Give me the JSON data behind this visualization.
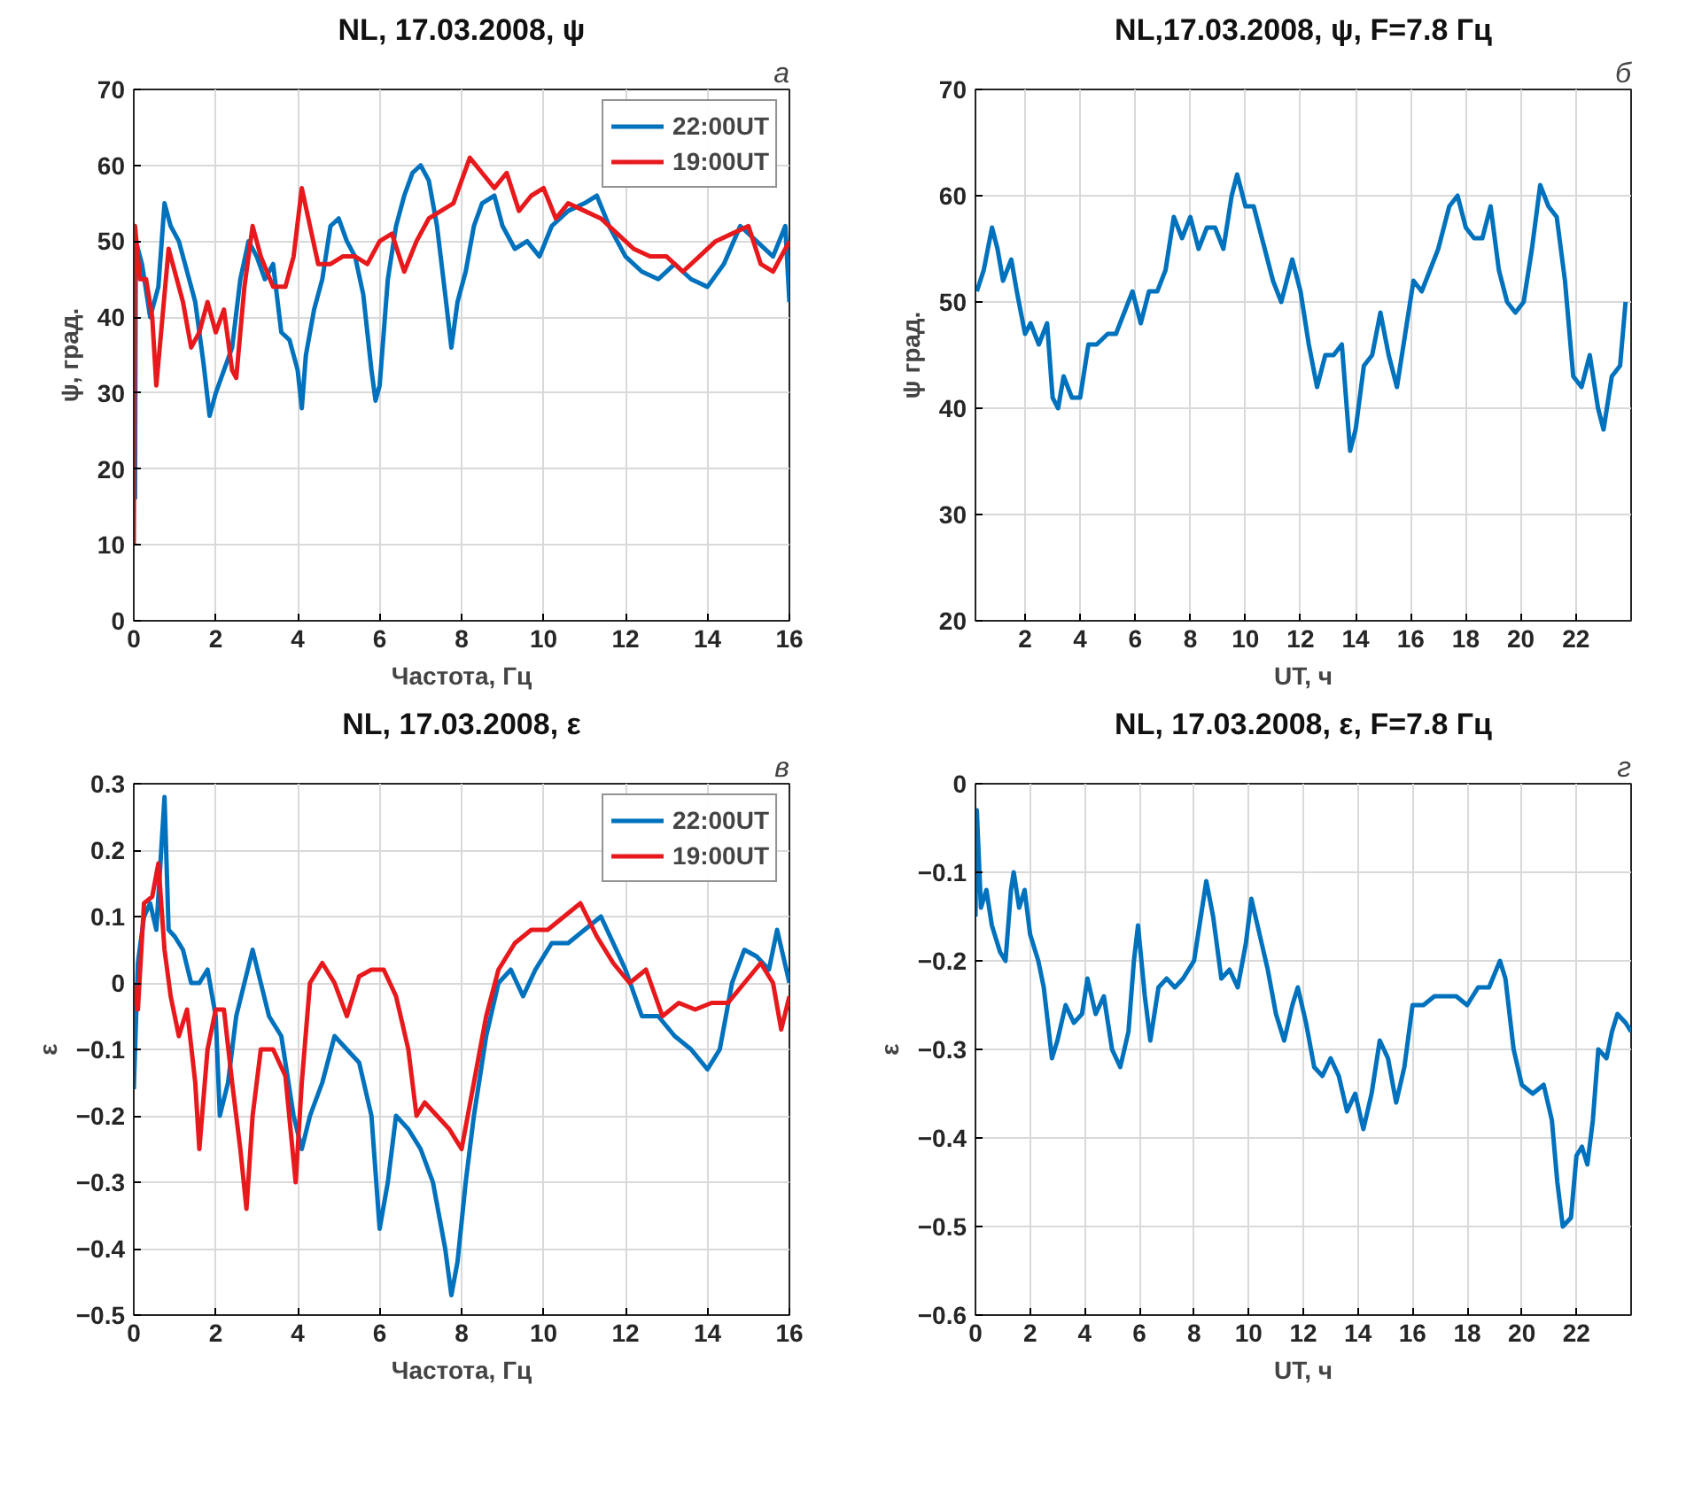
{
  "chart_data": [
    {
      "type": "line",
      "title": "NL, 17.03.2008, ψ",
      "xlabel": "Частота, Гц",
      "ylabel": "ψ, град.",
      "annotations": [
        "а"
      ],
      "xlim": [
        0,
        16
      ],
      "ylim": [
        0,
        70
      ],
      "xticks": [
        0,
        2,
        4,
        6,
        8,
        10,
        12,
        14,
        16
      ],
      "yticks": [
        0,
        10,
        20,
        30,
        40,
        50,
        60,
        70
      ],
      "grid": true,
      "legend": "top right",
      "series": [
        {
          "name": "22:00UT",
          "color": "#0072bd",
          "x": [
            0.03,
            0.05,
            0.2,
            0.4,
            0.6,
            0.75,
            0.9,
            1.1,
            1.3,
            1.5,
            1.7,
            1.85,
            2.0,
            2.2,
            2.4,
            2.6,
            2.8,
            3.0,
            3.2,
            3.4,
            3.6,
            3.8,
            4.0,
            4.1,
            4.2,
            4.4,
            4.6,
            4.8,
            5.0,
            5.2,
            5.4,
            5.6,
            5.8,
            5.9,
            6.0,
            6.2,
            6.4,
            6.6,
            6.8,
            7.0,
            7.2,
            7.4,
            7.6,
            7.75,
            7.9,
            8.1,
            8.3,
            8.5,
            8.8,
            9.0,
            9.3,
            9.6,
            9.9,
            10.2,
            10.6,
            11.0,
            11.3,
            11.6,
            12.0,
            12.4,
            12.8,
            13.2,
            13.6,
            14.0,
            14.4,
            14.8,
            15.2,
            15.6,
            15.9,
            16
          ],
          "values": [
            16,
            50,
            47,
            40,
            44,
            55,
            52,
            50,
            46,
            42,
            34,
            27,
            30,
            33,
            36,
            45,
            50,
            48,
            45,
            47,
            38,
            37,
            33,
            28,
            35,
            41,
            45,
            52,
            53,
            50,
            48,
            43,
            33,
            29,
            31,
            45,
            52,
            56,
            59,
            60,
            58,
            52,
            43,
            36,
            42,
            46,
            52,
            55,
            56,
            52,
            49,
            50,
            48,
            52,
            54,
            55,
            56,
            52,
            48,
            46,
            45,
            47,
            45,
            44,
            47,
            52,
            50,
            48,
            52,
            42
          ]
        },
        {
          "name": "19:00UT",
          "color": "#e8191c",
          "x": [
            0,
            0.03,
            0.15,
            0.3,
            0.45,
            0.55,
            0.7,
            0.85,
            1.0,
            1.2,
            1.4,
            1.6,
            1.8,
            2.0,
            2.2,
            2.4,
            2.5,
            2.7,
            2.9,
            3.1,
            3.4,
            3.7,
            3.9,
            4.1,
            4.3,
            4.5,
            4.8,
            5.1,
            5.4,
            5.7,
            6.0,
            6.3,
            6.6,
            6.9,
            7.2,
            7.5,
            7.8,
            8.0,
            8.2,
            8.5,
            8.8,
            9.1,
            9.4,
            9.7,
            10.0,
            10.3,
            10.6,
            11.0,
            11.4,
            11.8,
            12.2,
            12.6,
            13.0,
            13.4,
            13.8,
            14.2,
            14.6,
            15.0,
            15.3,
            15.6,
            16
          ],
          "values": [
            10,
            52,
            45,
            45,
            40,
            31,
            40,
            49,
            46,
            42,
            36,
            38,
            42,
            38,
            41,
            33,
            32,
            44,
            52,
            48,
            44,
            44,
            48,
            57,
            52,
            47,
            47,
            48,
            48,
            47,
            50,
            51,
            46,
            50,
            53,
            54,
            55,
            58,
            61,
            59,
            57,
            59,
            54,
            56,
            57,
            53,
            55,
            54,
            53,
            51,
            49,
            48,
            48,
            46,
            48,
            50,
            51,
            52,
            47,
            46,
            50
          ]
        }
      ]
    },
    {
      "type": "line",
      "title": "NL,17.03.2008, ψ, F=7.8 Гц",
      "xlabel": "UT, ч",
      "ylabel": "ψ град.",
      "annotations": [
        "б"
      ],
      "xlim": [
        0.2,
        24
      ],
      "ylim": [
        20,
        70
      ],
      "xticks": [
        2,
        4,
        6,
        8,
        10,
        12,
        14,
        16,
        18,
        20,
        22
      ],
      "yticks": [
        20,
        30,
        40,
        50,
        60,
        70
      ],
      "grid": true,
      "series": [
        {
          "color": "#0072bd",
          "x": [
            0.25,
            0.5,
            0.8,
            1.0,
            1.2,
            1.5,
            1.7,
            2.0,
            2.2,
            2.5,
            2.8,
            3.0,
            3.2,
            3.4,
            3.7,
            4.0,
            4.3,
            4.6,
            5.0,
            5.3,
            5.6,
            5.9,
            6.2,
            6.5,
            6.8,
            7.1,
            7.4,
            7.7,
            8.0,
            8.3,
            8.6,
            8.9,
            9.2,
            9.5,
            9.7,
            10.0,
            10.3,
            10.7,
            11.0,
            11.3,
            11.7,
            12.0,
            12.3,
            12.6,
            12.9,
            13.2,
            13.5,
            13.8,
            14.0,
            14.3,
            14.6,
            14.9,
            15.2,
            15.5,
            15.8,
            16.1,
            16.4,
            16.7,
            17.0,
            17.4,
            17.7,
            18.0,
            18.3,
            18.6,
            18.9,
            19.2,
            19.5,
            19.8,
            20.1,
            20.4,
            20.7,
            21.0,
            21.3,
            21.6,
            21.9,
            22.2,
            22.5,
            22.8,
            23.0,
            23.3,
            23.6,
            23.8
          ],
          "values": [
            51,
            53,
            57,
            55,
            52,
            54,
            51,
            47,
            48,
            46,
            48,
            41,
            40,
            43,
            41,
            41,
            46,
            46,
            47,
            47,
            49,
            51,
            48,
            51,
            51,
            53,
            58,
            56,
            58,
            55,
            57,
            57,
            55,
            60,
            62,
            59,
            59,
            55,
            52,
            50,
            54,
            51,
            46,
            42,
            45,
            45,
            46,
            36,
            38,
            44,
            45,
            49,
            45,
            42,
            47,
            52,
            51,
            53,
            55,
            59,
            60,
            57,
            56,
            56,
            59,
            53,
            50,
            49,
            50,
            55,
            61,
            59,
            58,
            52,
            43,
            42,
            45,
            40,
            38,
            43,
            44,
            50
          ]
        }
      ]
    },
    {
      "type": "line",
      "title": "NL, 17.03.2008, ε",
      "xlabel": "Частота, Гц",
      "ylabel": "ε",
      "annotations": [
        "в"
      ],
      "xlim": [
        0,
        16
      ],
      "ylim": [
        -0.5,
        0.3
      ],
      "xticks": [
        0,
        2,
        4,
        6,
        8,
        10,
        12,
        14,
        16
      ],
      "yticks": [
        -0.5,
        -0.4,
        -0.3,
        -0.2,
        -0.1,
        0,
        0.1,
        0.2,
        0.3
      ],
      "grid": true,
      "legend": "top right",
      "series": [
        {
          "name": "22:00UT",
          "color": "#0072bd",
          "x": [
            0,
            0.1,
            0.25,
            0.4,
            0.55,
            0.75,
            0.85,
            1.0,
            1.2,
            1.4,
            1.6,
            1.8,
            2.0,
            2.1,
            2.3,
            2.5,
            2.7,
            2.9,
            3.1,
            3.3,
            3.6,
            3.9,
            4.1,
            4.3,
            4.6,
            4.9,
            5.2,
            5.5,
            5.8,
            6.0,
            6.2,
            6.4,
            6.7,
            7.0,
            7.3,
            7.6,
            7.75,
            7.9,
            8.1,
            8.3,
            8.6,
            8.9,
            9.2,
            9.5,
            9.8,
            10.2,
            10.6,
            11.0,
            11.4,
            11.7,
            12.0,
            12.4,
            12.8,
            13.2,
            13.6,
            14.0,
            14.3,
            14.6,
            14.9,
            15.2,
            15.5,
            15.7,
            16
          ],
          "values": [
            -0.16,
            0.03,
            0.1,
            0.12,
            0.08,
            0.28,
            0.08,
            0.07,
            0.05,
            0.0,
            0.0,
            0.02,
            -0.05,
            -0.2,
            -0.15,
            -0.05,
            0.0,
            0.05,
            0.0,
            -0.05,
            -0.08,
            -0.2,
            -0.25,
            -0.2,
            -0.15,
            -0.08,
            -0.1,
            -0.12,
            -0.2,
            -0.37,
            -0.3,
            -0.2,
            -0.22,
            -0.25,
            -0.3,
            -0.4,
            -0.47,
            -0.42,
            -0.3,
            -0.2,
            -0.08,
            0.0,
            0.02,
            -0.02,
            0.02,
            0.06,
            0.06,
            0.08,
            0.1,
            0.06,
            0.02,
            -0.05,
            -0.05,
            -0.08,
            -0.1,
            -0.13,
            -0.1,
            0.0,
            0.05,
            0.04,
            0.02,
            0.08,
            0.0
          ]
        },
        {
          "name": "19:00UT",
          "color": "#e8191c",
          "x": [
            0,
            0.1,
            0.25,
            0.45,
            0.6,
            0.75,
            0.9,
            1.1,
            1.3,
            1.5,
            1.6,
            1.8,
            2.0,
            2.2,
            2.4,
            2.6,
            2.75,
            2.9,
            3.1,
            3.4,
            3.7,
            3.95,
            4.1,
            4.3,
            4.6,
            4.9,
            5.2,
            5.5,
            5.8,
            6.1,
            6.4,
            6.7,
            6.9,
            7.1,
            7.4,
            7.7,
            8.0,
            8.3,
            8.6,
            8.9,
            9.3,
            9.7,
            10.1,
            10.5,
            10.9,
            11.3,
            11.7,
            12.1,
            12.5,
            12.9,
            13.3,
            13.7,
            14.1,
            14.5,
            14.9,
            15.3,
            15.6,
            15.8,
            16
          ],
          "values": [
            0.0,
            -0.04,
            0.12,
            0.13,
            0.18,
            0.05,
            -0.02,
            -0.08,
            -0.04,
            -0.15,
            -0.25,
            -0.1,
            -0.04,
            -0.04,
            -0.15,
            -0.25,
            -0.34,
            -0.2,
            -0.1,
            -0.1,
            -0.14,
            -0.3,
            -0.15,
            0.0,
            0.03,
            0.0,
            -0.05,
            0.01,
            0.02,
            0.02,
            -0.02,
            -0.1,
            -0.2,
            -0.18,
            -0.2,
            -0.22,
            -0.25,
            -0.15,
            -0.05,
            0.02,
            0.06,
            0.08,
            0.08,
            0.1,
            0.12,
            0.07,
            0.03,
            0.0,
            0.02,
            -0.05,
            -0.03,
            -0.04,
            -0.03,
            -0.03,
            0.0,
            0.03,
            0.0,
            -0.07,
            -0.02
          ]
        }
      ]
    },
    {
      "type": "line",
      "title": "NL, 17.03.2008, ε, F=7.8 Гц",
      "xlabel": "UT, ч",
      "ylabel": "ε",
      "annotations": [
        "г"
      ],
      "xlim": [
        0,
        24
      ],
      "ylim": [
        -0.6,
        0
      ],
      "xticks": [
        0,
        2,
        4,
        6,
        8,
        10,
        12,
        14,
        16,
        18,
        20,
        22
      ],
      "yticks": [
        -0.6,
        -0.5,
        -0.4,
        -0.3,
        -0.2,
        -0.1,
        0
      ],
      "grid": true,
      "series": [
        {
          "color": "#0072bd",
          "x": [
            0,
            0.05,
            0.2,
            0.4,
            0.6,
            0.9,
            1.1,
            1.3,
            1.4,
            1.6,
            1.8,
            2.0,
            2.3,
            2.5,
            2.8,
            3.0,
            3.3,
            3.6,
            3.9,
            4.1,
            4.4,
            4.7,
            5.0,
            5.3,
            5.6,
            5.8,
            5.95,
            6.2,
            6.4,
            6.7,
            7.0,
            7.3,
            7.6,
            8.0,
            8.3,
            8.45,
            8.7,
            9.0,
            9.3,
            9.6,
            9.9,
            10.1,
            10.4,
            10.7,
            11.0,
            11.3,
            11.6,
            11.8,
            12.1,
            12.4,
            12.7,
            13.0,
            13.3,
            13.6,
            13.9,
            14.2,
            14.5,
            14.8,
            15.1,
            15.4,
            15.7,
            16.0,
            16.4,
            16.8,
            17.2,
            17.6,
            18.0,
            18.4,
            18.8,
            19.2,
            19.4,
            19.7,
            20.0,
            20.4,
            20.8,
            21.1,
            21.3,
            21.5,
            21.8,
            22.0,
            22.2,
            22.4,
            22.6,
            22.8,
            23.1,
            23.3,
            23.5,
            23.8,
            24
          ],
          "values": [
            -0.15,
            -0.03,
            -0.14,
            -0.12,
            -0.16,
            -0.19,
            -0.2,
            -0.12,
            -0.1,
            -0.14,
            -0.12,
            -0.17,
            -0.2,
            -0.23,
            -0.31,
            -0.29,
            -0.25,
            -0.27,
            -0.26,
            -0.22,
            -0.26,
            -0.24,
            -0.3,
            -0.32,
            -0.28,
            -0.2,
            -0.16,
            -0.24,
            -0.29,
            -0.23,
            -0.22,
            -0.23,
            -0.22,
            -0.2,
            -0.14,
            -0.11,
            -0.15,
            -0.22,
            -0.21,
            -0.23,
            -0.18,
            -0.13,
            -0.17,
            -0.21,
            -0.26,
            -0.29,
            -0.25,
            -0.23,
            -0.27,
            -0.32,
            -0.33,
            -0.31,
            -0.33,
            -0.37,
            -0.35,
            -0.39,
            -0.35,
            -0.29,
            -0.31,
            -0.36,
            -0.32,
            -0.25,
            -0.25,
            -0.24,
            -0.24,
            -0.24,
            -0.25,
            -0.23,
            -0.23,
            -0.2,
            -0.22,
            -0.3,
            -0.34,
            -0.35,
            -0.34,
            -0.38,
            -0.45,
            -0.5,
            -0.49,
            -0.42,
            -0.41,
            -0.43,
            -0.38,
            -0.3,
            -0.31,
            -0.28,
            -0.26,
            -0.27,
            -0.28
          ]
        }
      ]
    }
  ]
}
